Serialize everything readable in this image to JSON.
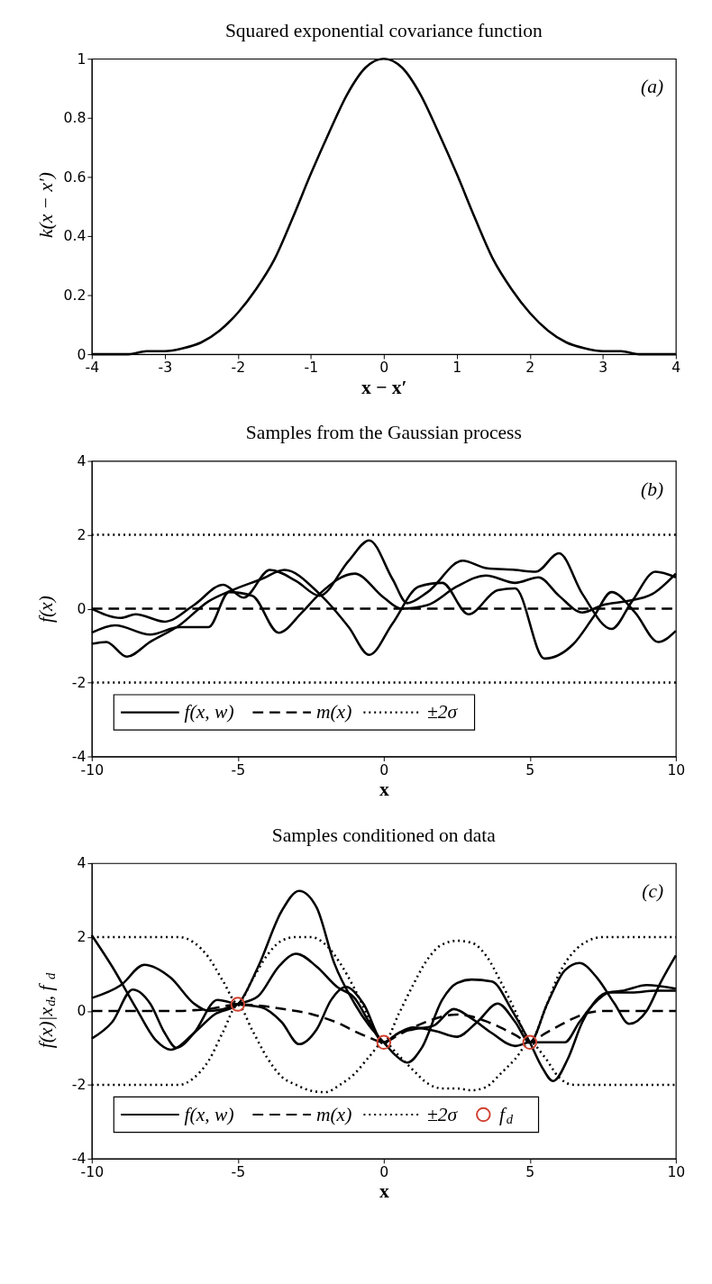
{
  "chart_data": [
    {
      "type": "line",
      "title": "Squared exponential covariance function",
      "xlabel": "x − x′",
      "ylabel": "k(x − x′)",
      "annotations": [
        "(a)"
      ],
      "xlim": [
        -4,
        4
      ],
      "ylim": [
        0,
        1
      ],
      "xticks": [
        -4,
        -3,
        -2,
        -1,
        0,
        1,
        2,
        3,
        4
      ],
      "yticks": [
        0,
        0.2,
        0.4,
        0.6,
        0.8,
        1
      ],
      "x": [
        -4,
        -3.75,
        -3.5,
        -3.25,
        -3,
        -2.75,
        -2.5,
        -2.25,
        -2,
        -1.75,
        -1.5,
        -1.25,
        -1,
        -0.75,
        -0.5,
        -0.25,
        0,
        0.25,
        0.5,
        0.75,
        1,
        1.25,
        1.5,
        1.75,
        2,
        2.25,
        2.5,
        2.75,
        3,
        3.25,
        3.5,
        3.75,
        4
      ],
      "series": [
        {
          "color": "#000000",
          "line_style": "solid",
          "values": [
            0.0,
            0.0,
            0.0,
            0.01,
            0.01,
            0.02,
            0.04,
            0.08,
            0.14,
            0.22,
            0.32,
            0.46,
            0.61,
            0.75,
            0.88,
            0.97,
            1,
            0.97,
            0.88,
            0.75,
            0.61,
            0.46,
            0.32,
            0.22,
            0.14,
            0.08,
            0.04,
            0.02,
            0.01,
            0.01,
            0.0,
            0.0,
            0.0
          ]
        }
      ]
    },
    {
      "type": "line",
      "title": "Samples from the Gaussian process",
      "xlabel": "x",
      "ylabel": "f(x)",
      "annotations": [
        "(b)"
      ],
      "legend": "bottom left",
      "xlim": [
        -10,
        10
      ],
      "ylim": [
        -4,
        4
      ],
      "xticks": [
        -10,
        -5,
        0,
        5,
        10
      ],
      "yticks": [
        -4,
        -2,
        0,
        2,
        4
      ],
      "series": [
        {
          "name": "f(x, w)",
          "color": "#000000",
          "line_style": "solid",
          "x": [
            -10,
            -9,
            -8.5,
            -7.5,
            -6.5,
            -5.5,
            -4.8,
            -3.9,
            -3,
            -2.2,
            -1.2,
            -0.5,
            0.3,
            0.8,
            1.5,
            2.7,
            3.5,
            4.5,
            5.2,
            6,
            6.8,
            7.8,
            8.5,
            9.3,
            10
          ],
          "values": [
            0.0,
            -0.25,
            -0.15,
            -0.35,
            0.1,
            0.65,
            0.3,
            1.05,
            0.75,
            0.35,
            1.3,
            1.85,
            0.8,
            0.15,
            0.45,
            1.3,
            1.1,
            1.05,
            1.0,
            1.5,
            0.4,
            -0.55,
            0.2,
            1.0,
            0.85
          ]
        },
        {
          "color": "#000000",
          "line_style": "solid",
          "x": [
            -10,
            -9.2,
            -8,
            -7,
            -6,
            -5.3,
            -4.5,
            -3.6,
            -2.8,
            -2.2,
            -1,
            0,
            0.6,
            1.5,
            2.5,
            3.5,
            4.5,
            5.3,
            6,
            6.8,
            7.5,
            8.3,
            9.2,
            10
          ],
          "values": [
            -0.65,
            -0.45,
            -0.7,
            -0.5,
            -0.5,
            0.45,
            0.35,
            -0.65,
            -0.1,
            0.4,
            0.95,
            0.3,
            0.0,
            0.1,
            0.6,
            0.9,
            0.7,
            0.85,
            0.35,
            -0.1,
            0.1,
            0.2,
            0.4,
            0.95
          ]
        },
        {
          "color": "#000000",
          "line_style": "solid",
          "x": [
            -10,
            -9.5,
            -8.8,
            -8,
            -7,
            -6,
            -5.2,
            -4.2,
            -3.4,
            -2.2,
            -1.2,
            -0.5,
            0.3,
            1.2,
            2,
            2.9,
            3.9,
            4.5,
            5.5,
            6.5,
            7.2,
            7.8,
            8.6,
            9.4,
            10
          ],
          "values": [
            -0.95,
            -0.9,
            -1.3,
            -0.9,
            -0.45,
            0.2,
            0.5,
            0.8,
            1.05,
            0.4,
            -0.5,
            -1.25,
            -0.4,
            0.6,
            0.7,
            -0.15,
            0.5,
            0.55,
            -1.35,
            -0.95,
            -0.2,
            0.45,
            -0.1,
            -0.9,
            -0.6
          ]
        },
        {
          "name": "m(x)",
          "color": "#000000",
          "line_style": "dashed",
          "x": [
            -10,
            10
          ],
          "values": [
            0,
            0
          ]
        },
        {
          "name": "±2σ",
          "color": "#000000",
          "line_style": "dotted",
          "x": [
            -10,
            10
          ],
          "values": [
            2,
            2
          ]
        },
        {
          "color": "#000000",
          "line_style": "dotted",
          "x": [
            -10,
            10
          ],
          "values": [
            -2,
            -2
          ]
        }
      ]
    },
    {
      "type": "line",
      "title": "Samples conditioned on data",
      "xlabel": "x",
      "ylabel": "f(x)|x$_{d}$, f$_{d}$",
      "annotations": [
        "(c)"
      ],
      "legend": "bottom left",
      "xlim": [
        -10,
        10
      ],
      "ylim": [
        -4,
        4
      ],
      "xticks": [
        -10,
        -5,
        0,
        5,
        10
      ],
      "yticks": [
        -4,
        -2,
        0,
        2,
        4
      ],
      "series": [
        {
          "name": "f(x, w)",
          "color": "#000000",
          "line_style": "solid",
          "x": [
            -10,
            -9.3,
            -8.5,
            -7.8,
            -7.3,
            -6.5,
            -5.8,
            -5,
            -4.3,
            -3.5,
            -2.9,
            -2.3,
            -1.7,
            -1,
            -0.5,
            0,
            0.4,
            0.8,
            1.3,
            2,
            2.5,
            3,
            3.7,
            4.4,
            5,
            5.4,
            5.8,
            6.3,
            6.8,
            7.7,
            8.5,
            9.3,
            10
          ],
          "values": [
            2.05,
            1.2,
            0.1,
            -0.8,
            -1.05,
            -0.6,
            -0.1,
            0.18,
            1.2,
            2.7,
            3.25,
            2.8,
            1.3,
            0.2,
            -0.4,
            -0.85,
            -1.2,
            -1.4,
            -1.0,
            0.3,
            0.75,
            0.85,
            0.8,
            0.0,
            -0.85,
            -1.5,
            -1.9,
            -1.3,
            -0.3,
            0.5,
            0.5,
            0.55,
            0.55
          ]
        },
        {
          "color": "#000000",
          "line_style": "solid",
          "x": [
            -10,
            -9,
            -8.2,
            -7.3,
            -6.5,
            -6,
            -5.5,
            -5,
            -4.3,
            -3.6,
            -3,
            -2.3,
            -1.6,
            -1,
            -0.5,
            0,
            0.5,
            1,
            1.8,
            2.5,
            3.2,
            3.9,
            4.5,
            5,
            5.6,
            6.2,
            6.7,
            7.3,
            7.9,
            8.4,
            9,
            9.5,
            10
          ],
          "values": [
            0.35,
            0.7,
            1.25,
            0.9,
            0.2,
            0.0,
            0.05,
            0.18,
            0.4,
            1.2,
            1.55,
            1.2,
            0.65,
            0.35,
            -0.3,
            -0.85,
            -0.6,
            -0.45,
            -0.55,
            -0.7,
            -0.3,
            0.2,
            -0.3,
            -0.85,
            0.2,
            1.1,
            1.3,
            0.9,
            0.2,
            -0.35,
            0.0,
            0.8,
            1.5
          ]
        },
        {
          "color": "#000000",
          "line_style": "solid",
          "x": [
            -10,
            -9.3,
            -8.6,
            -8,
            -7.5,
            -7.1,
            -6.5,
            -5.7,
            -5,
            -4.2,
            -3.5,
            -2.9,
            -2.3,
            -1.8,
            -1.3,
            -0.7,
            0,
            0.5,
            1,
            1.7,
            2.4,
            3,
            3.7,
            4.5,
            5,
            5.5,
            6.2,
            6.7,
            7.2,
            7.7,
            8.2,
            9,
            10
          ],
          "values": [
            -0.75,
            -0.3,
            0.58,
            0.2,
            -0.6,
            -1.0,
            -0.6,
            0.3,
            0.18,
            0.1,
            -0.3,
            -0.9,
            -0.5,
            0.3,
            0.65,
            0.2,
            -0.85,
            -0.6,
            -0.5,
            -0.4,
            0.05,
            -0.2,
            -0.6,
            -0.95,
            -0.85,
            -0.85,
            -0.85,
            -0.3,
            0.2,
            0.5,
            0.55,
            0.7,
            0.6
          ]
        },
        {
          "name": "m(x)",
          "color": "#000000",
          "line_style": "dashed",
          "x": [
            -10,
            -7,
            -6.5,
            -6,
            -5.5,
            -5,
            -4.5,
            -4,
            -3.5,
            -3,
            -2.5,
            -2,
            -1.5,
            -1,
            -0.5,
            0,
            0.5,
            1,
            1.5,
            2,
            2.5,
            3,
            3.5,
            4,
            4.5,
            5,
            5.5,
            6,
            6.5,
            7,
            7.5,
            10
          ],
          "values": [
            0,
            0,
            0.02,
            0.05,
            0.12,
            0.18,
            0.16,
            0.12,
            0.06,
            0.0,
            -0.08,
            -0.2,
            -0.35,
            -0.55,
            -0.72,
            -0.85,
            -0.65,
            -0.45,
            -0.28,
            -0.15,
            -0.1,
            -0.15,
            -0.28,
            -0.45,
            -0.65,
            -0.85,
            -0.62,
            -0.4,
            -0.2,
            -0.05,
            0,
            0
          ]
        },
        {
          "name": "±2σ",
          "color": "#000000",
          "line_style": "dotted",
          "x": [
            -10,
            -7,
            -6.5,
            -6,
            -5.5,
            -5,
            -4.5,
            -4,
            -3.5,
            -3,
            -2.5,
            -2,
            -1.5,
            -1,
            -0.5,
            0,
            0.5,
            1,
            1.5,
            2,
            2.5,
            3,
            3.5,
            4,
            4.5,
            5,
            5.5,
            6,
            6.5,
            7,
            7.5,
            10
          ],
          "values": [
            2,
            2,
            1.85,
            1.45,
            0.8,
            0.2,
            0.85,
            1.5,
            1.9,
            2.0,
            2.0,
            1.8,
            1.3,
            0.6,
            -0.2,
            -0.85,
            -0.1,
            0.7,
            1.4,
            1.8,
            1.9,
            1.85,
            1.5,
            0.8,
            0.0,
            -0.85,
            0.0,
            1.0,
            1.6,
            1.9,
            2.0,
            2
          ]
        },
        {
          "color": "#000000",
          "line_style": "dotted",
          "x": [
            -10,
            -7,
            -6.5,
            -6,
            -5.5,
            -5,
            -4.5,
            -4,
            -3.5,
            -3,
            -2.5,
            -2,
            -1.5,
            -1,
            -0.5,
            0,
            0.5,
            1,
            1.5,
            2,
            2.5,
            3,
            3.5,
            4,
            4.5,
            5,
            5.5,
            6,
            6.5,
            7,
            7.5,
            10
          ],
          "values": [
            -2,
            -2,
            -1.81,
            -1.35,
            -0.56,
            0.16,
            -0.53,
            -1.26,
            -1.78,
            -2.0,
            -2.16,
            -2.2,
            -2.0,
            -1.7,
            -1.24,
            -0.85,
            -1.2,
            -1.6,
            -1.96,
            -2.1,
            -2.1,
            -2.15,
            -2.06,
            -1.7,
            -1.3,
            -0.85,
            -1.24,
            -1.8,
            -2.0,
            -2.0,
            -2,
            -2
          ]
        },
        {
          "name": "f$_{d}$",
          "type": "scatter",
          "marker": "circle",
          "color": "#d04030",
          "x": [
            -5,
            0,
            5
          ],
          "values": [
            0.18,
            -0.85,
            -0.85
          ]
        }
      ]
    }
  ]
}
